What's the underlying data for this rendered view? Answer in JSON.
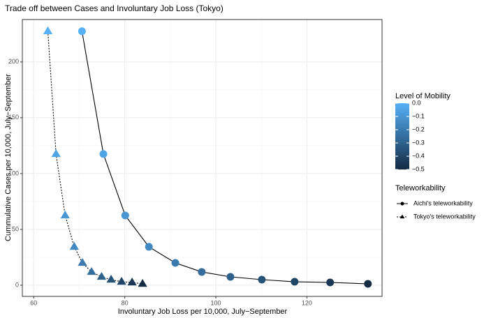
{
  "chart_data": {
    "type": "scatter",
    "title": "Trade off between Cases and Involuntary Job Loss (Tokyo)",
    "x_label": "Involuntary Job Loss per 10,000, July−September",
    "y_label": "Cummulative Cases per 10,000, July−September",
    "xlim": [
      57.5,
      136.5
    ],
    "ylim": [
      -10,
      238
    ],
    "xticks": [
      60,
      80,
      100,
      120
    ],
    "yticks": [
      0,
      50,
      100,
      150,
      200
    ],
    "grid": true,
    "color_scale": {
      "name": "Level of Mobility",
      "low": "#132B43",
      "high": "#56B1F7",
      "lim": [
        -0.5,
        0
      ],
      "ticks": [
        {
          "value": 0,
          "label": "0.0"
        },
        {
          "value": -0.1,
          "label": "−0.1"
        },
        {
          "value": -0.2,
          "label": "−0.2"
        },
        {
          "value": -0.3,
          "label": "−0.3"
        },
        {
          "value": -0.4,
          "label": "−0.4"
        },
        {
          "value": -0.5,
          "label": "−0.5"
        }
      ]
    },
    "shape_legend_title": "Teleworkability",
    "series": [
      {
        "name": "Aichi's teleworkability",
        "marker": "circle",
        "line": "solid",
        "color": "#000000",
        "x": [
          70.6,
          75.3,
          80.1,
          85.3,
          91.1,
          96.9,
          103.2,
          110.1,
          117.3,
          125.1,
          133.4
        ],
        "values": [
          227.5,
          117.5,
          62.5,
          34.4,
          20,
          11.9,
          7.5,
          5,
          3.1,
          2.5,
          1.25
        ],
        "mobility": [
          0,
          -0.05,
          -0.1,
          -0.15,
          -0.2,
          -0.25,
          -0.3,
          -0.35,
          -0.4,
          -0.45,
          -0.5
        ]
      },
      {
        "name": "Tokyo's teleworkability",
        "marker": "triangle",
        "line": "dotted",
        "color": "#000000",
        "x": [
          63.1,
          64.9,
          66.9,
          68.9,
          70.7,
          72.7,
          74.9,
          77.0,
          79.3,
          81.6,
          83.9
        ],
        "values": [
          227.5,
          117.5,
          62.5,
          34.4,
          20,
          11.9,
          7.5,
          5,
          3.1,
          2.5,
          1.25
        ],
        "mobility": [
          0,
          -0.05,
          -0.1,
          -0.15,
          -0.2,
          -0.25,
          -0.3,
          -0.35,
          -0.4,
          -0.45,
          -0.5
        ]
      }
    ]
  }
}
